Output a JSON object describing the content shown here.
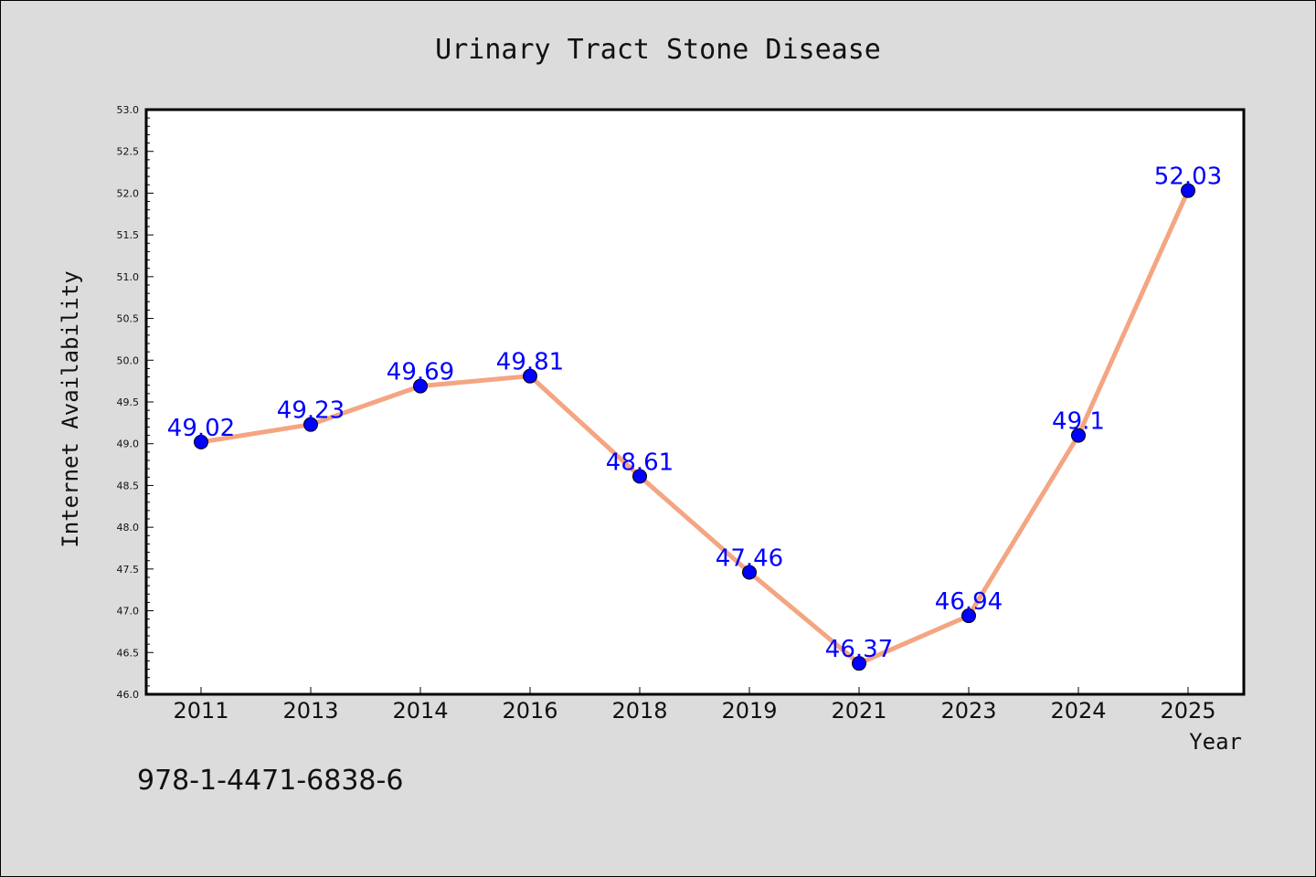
{
  "chart_data": {
    "type": "line",
    "title": "Urinary Tract Stone Disease",
    "xlabel": "Year",
    "ylabel": "Internet Availability",
    "categories": [
      "2011",
      "2013",
      "2014",
      "2016",
      "2018",
      "2019",
      "2021",
      "2023",
      "2024",
      "2025"
    ],
    "values": [
      49.02,
      49.23,
      49.69,
      49.81,
      48.61,
      47.46,
      46.37,
      46.94,
      49.1,
      52.03
    ],
    "data_labels": [
      "49.02",
      "49.23",
      "49.69",
      "49.81",
      "48.61",
      "47.46",
      "46.37",
      "46.94",
      "49.1",
      "52.03"
    ],
    "ylim": [
      46.0,
      53.0
    ],
    "yticks": [
      "46.0",
      "46.5",
      "47.0",
      "47.5",
      "48.0",
      "48.5",
      "49.0",
      "49.5",
      "50.0",
      "50.5",
      "51.0",
      "51.5",
      "52.0",
      "52.5",
      "53.0"
    ],
    "grid": false,
    "line_color": "#f4a582",
    "marker_color": "#0000ff",
    "label_color": "#0000ff"
  },
  "footer": {
    "isbn": "978-1-4471-6838-6"
  }
}
